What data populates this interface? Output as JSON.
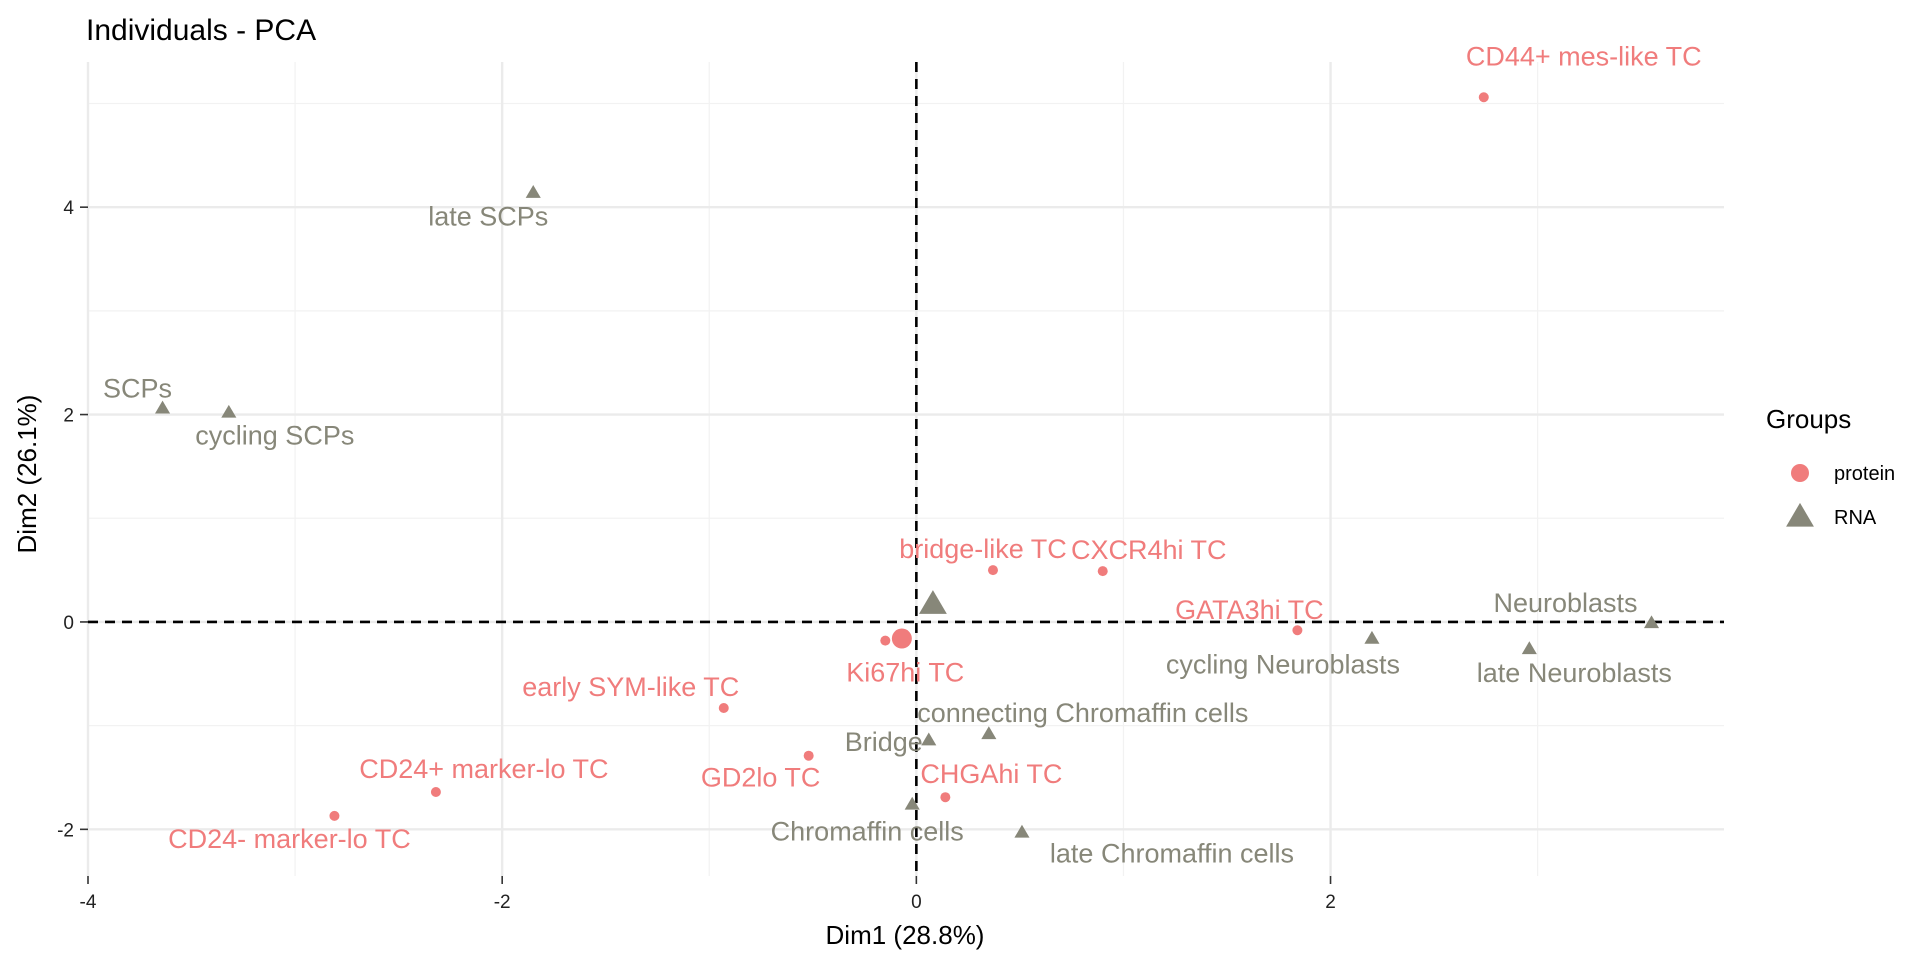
{
  "chart_data": {
    "type": "scatter",
    "title": "Individuals - PCA",
    "xlabel": "Dim1 (28.8%)",
    "ylabel": "Dim2 (26.1%)",
    "xlim": [
      -4,
      3.9
    ],
    "ylim": [
      -2.45,
      5.4
    ],
    "x_ticks": [
      -4,
      -2,
      0,
      2
    ],
    "y_ticks": [
      -2,
      0,
      2,
      4
    ],
    "x_tick_labels": [
      "-4",
      "-2",
      "0",
      "2"
    ],
    "y_tick_labels": [
      "-2",
      "0",
      "2",
      "4"
    ],
    "grid": true,
    "reference_lines": {
      "x": 0,
      "y": 0,
      "style": "dashed"
    },
    "legend": {
      "title": "Groups",
      "placement": "right",
      "entries": [
        {
          "name": "protein",
          "color": "#F07C7C",
          "shape": "circle"
        },
        {
          "name": "RNA",
          "color": "#878779",
          "shape": "triangle"
        }
      ]
    },
    "series": [
      {
        "name": "protein",
        "color": "#F07C7C",
        "shape": "circle",
        "centroid": {
          "x": -0.07,
          "y": -0.16
        },
        "points": [
          {
            "label": "CD44+ mes-like TC",
            "x": 2.74,
            "y": 5.06
          },
          {
            "label": "bridge-like TC",
            "x": 0.37,
            "y": 0.5
          },
          {
            "label": "CXCR4hi TC",
            "x": 0.9,
            "y": 0.49
          },
          {
            "label": "GATA3hi TC",
            "x": 1.84,
            "y": -0.08
          },
          {
            "label": "Ki67hi TC",
            "x": -0.15,
            "y": -0.18
          },
          {
            "label": "early SYM-like TC",
            "x": -0.93,
            "y": -0.83
          },
          {
            "label": "GD2lo TC",
            "x": -0.52,
            "y": -1.29
          },
          {
            "label": "CHGAhi TC",
            "x": 0.14,
            "y": -1.69
          },
          {
            "label": "CD24+ marker-lo TC",
            "x": -2.32,
            "y": -1.64
          },
          {
            "label": "CD24- marker-lo TC",
            "x": -2.81,
            "y": -1.87
          }
        ]
      },
      {
        "name": "RNA",
        "color": "#878779",
        "shape": "triangle",
        "centroid": {
          "x": 0.08,
          "y": 0.17
        },
        "points": [
          {
            "label": "late SCPs",
            "x": -1.85,
            "y": 4.14
          },
          {
            "label": "SCPs",
            "x": -3.64,
            "y": 2.06
          },
          {
            "label": "cycling SCPs",
            "x": -3.32,
            "y": 2.02
          },
          {
            "label": "Neuroblasts",
            "x": 3.55,
            "y": -0.01
          },
          {
            "label": "cycling Neuroblasts",
            "x": 2.2,
            "y": -0.16
          },
          {
            "label": "late Neuroblasts",
            "x": 2.96,
            "y": -0.26
          },
          {
            "label": "connecting Chromaffin cells",
            "x": 0.35,
            "y": -1.08
          },
          {
            "label": "Bridge",
            "x": 0.06,
            "y": -1.14
          },
          {
            "label": "Chromaffin cells",
            "x": -0.02,
            "y": -1.76
          },
          {
            "label": "late Chromaffin cells",
            "x": 0.51,
            "y": -2.03
          }
        ]
      }
    ]
  }
}
